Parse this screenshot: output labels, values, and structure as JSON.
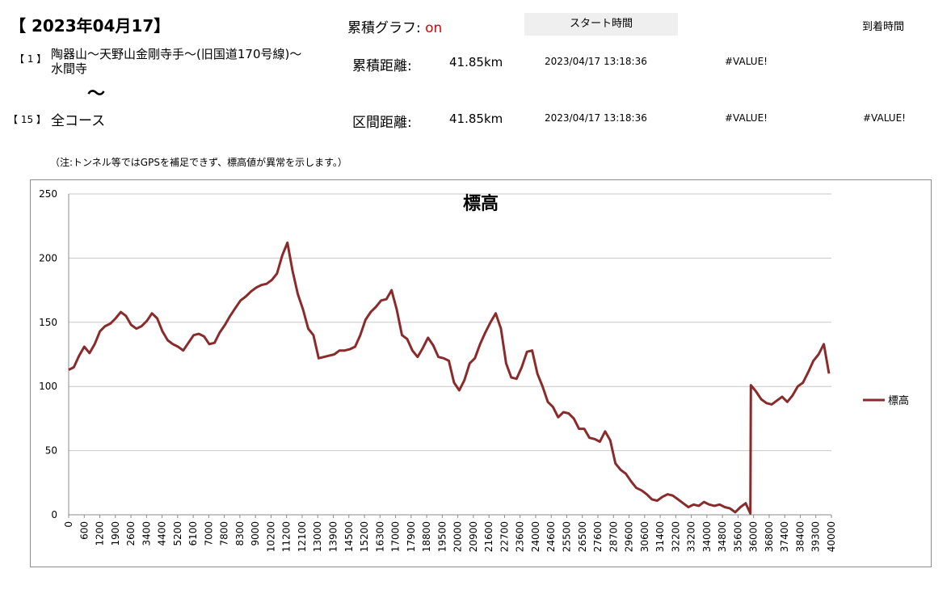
{
  "header": {
    "date": "【 2023年04月17】",
    "graph_label": "累積グラフ:",
    "graph_state": "on",
    "start_time_label": "スタート時間",
    "arrival_time_label": "到着時間"
  },
  "route": {
    "from_num": "【 1 】",
    "from_name_line1": "陶器山～天野山金剛寺手～(旧国道170号線)～",
    "from_name_line2": "水間寺",
    "tilde": "～",
    "to_num": "【 15 】",
    "to_name": "全コース"
  },
  "rows": [
    {
      "label": "累積距離:",
      "distance": "41.85km",
      "start": "2023/04/17 13:18:36",
      "arrival": "#VALUE!",
      "extra": ""
    },
    {
      "label": "区間距離:",
      "distance": "41.85km",
      "start": "2023/04/17 13:18:36",
      "arrival": "#VALUE!",
      "extra": "#VALUE!"
    }
  ],
  "note": "（注:トンネル等ではGPSを補足できず、標高値が異常を示します。）",
  "chart_data": {
    "type": "line",
    "title": "標高",
    "ylim": [
      0,
      250
    ],
    "y_ticks": [
      0,
      50,
      100,
      150,
      200,
      250
    ],
    "x_tick_labels": [
      "0",
      "600",
      "1200",
      "1900",
      "2600",
      "3400",
      "4400",
      "5200",
      "6100",
      "7000",
      "7800",
      "8300",
      "9000",
      "10200",
      "11200",
      "12100",
      "13000",
      "13900",
      "14500",
      "15200",
      "16300",
      "17000",
      "17900",
      "18800",
      "19500",
      "20000",
      "20900",
      "21600",
      "22700",
      "23600",
      "24000",
      "24600",
      "25500",
      "26500",
      "27600",
      "28700",
      "29600",
      "30600",
      "31400",
      "32200",
      "33200",
      "34000",
      "34800",
      "35600",
      "36000",
      "36800",
      "37400",
      "38400",
      "39300",
      "40000"
    ],
    "grid": "horizontal",
    "legend_position": "right",
    "series": [
      {
        "name": "標高",
        "color": "#8b2a2a",
        "points": [
          [
            0,
            113
          ],
          [
            1,
            115
          ],
          [
            2,
            124
          ],
          [
            3,
            131
          ],
          [
            4,
            126
          ],
          [
            5,
            133
          ],
          [
            6,
            143
          ],
          [
            7,
            147
          ],
          [
            8,
            149
          ],
          [
            9,
            153
          ],
          [
            10,
            158
          ],
          [
            11,
            155
          ],
          [
            12,
            148
          ],
          [
            13,
            145
          ],
          [
            14,
            147
          ],
          [
            15,
            151
          ],
          [
            16,
            157
          ],
          [
            17,
            153
          ],
          [
            18,
            143
          ],
          [
            19,
            136
          ],
          [
            20,
            133
          ],
          [
            21,
            131
          ],
          [
            22,
            128
          ],
          [
            23,
            134
          ],
          [
            24,
            140
          ],
          [
            25,
            141
          ],
          [
            26,
            139
          ],
          [
            27,
            133
          ],
          [
            28,
            134
          ],
          [
            29,
            142
          ],
          [
            30,
            148
          ],
          [
            31,
            155
          ],
          [
            32,
            161
          ],
          [
            33,
            167
          ],
          [
            34,
            170
          ],
          [
            35,
            174
          ],
          [
            36,
            177
          ],
          [
            37,
            179
          ],
          [
            38,
            180
          ],
          [
            39,
            183
          ],
          [
            40,
            188
          ],
          [
            41,
            202
          ],
          [
            42,
            212
          ],
          [
            43,
            190
          ],
          [
            44,
            172
          ],
          [
            45,
            160
          ],
          [
            46,
            145
          ],
          [
            47,
            140
          ],
          [
            48,
            122
          ],
          [
            49,
            123
          ],
          [
            50,
            124
          ],
          [
            51,
            125
          ],
          [
            52,
            128
          ],
          [
            53,
            128
          ],
          [
            54,
            129
          ],
          [
            55,
            131
          ],
          [
            56,
            140
          ],
          [
            57,
            152
          ],
          [
            58,
            158
          ],
          [
            59,
            162
          ],
          [
            60,
            167
          ],
          [
            61,
            168
          ],
          [
            62,
            175
          ],
          [
            63,
            160
          ],
          [
            64,
            140
          ],
          [
            65,
            137
          ],
          [
            66,
            128
          ],
          [
            67,
            123
          ],
          [
            68,
            130
          ],
          [
            69,
            138
          ],
          [
            70,
            132
          ],
          [
            71,
            123
          ],
          [
            72,
            122
          ],
          [
            73,
            120
          ],
          [
            74,
            103
          ],
          [
            75,
            97
          ],
          [
            76,
            105
          ],
          [
            77,
            118
          ],
          [
            78,
            122
          ],
          [
            79,
            133
          ],
          [
            80,
            142
          ],
          [
            81,
            150
          ],
          [
            82,
            157
          ],
          [
            83,
            145
          ],
          [
            84,
            118
          ],
          [
            85,
            107
          ],
          [
            86,
            106
          ],
          [
            87,
            115
          ],
          [
            88,
            127
          ],
          [
            89,
            128
          ],
          [
            90,
            110
          ],
          [
            91,
            100
          ],
          [
            92,
            88
          ],
          [
            93,
            84
          ],
          [
            94,
            76
          ],
          [
            95,
            80
          ],
          [
            96,
            79
          ],
          [
            97,
            75
          ],
          [
            98,
            67
          ],
          [
            99,
            67
          ],
          [
            100,
            60
          ],
          [
            101,
            59
          ],
          [
            102,
            57
          ],
          [
            103,
            65
          ],
          [
            104,
            58
          ],
          [
            105,
            40
          ],
          [
            106,
            35
          ],
          [
            107,
            32
          ],
          [
            108,
            26
          ],
          [
            109,
            21
          ],
          [
            110,
            19
          ],
          [
            111,
            16
          ],
          [
            112,
            12
          ],
          [
            113,
            11
          ],
          [
            114,
            14
          ],
          [
            115,
            16
          ],
          [
            116,
            15
          ],
          [
            117,
            12
          ],
          [
            118,
            9
          ],
          [
            119,
            6
          ],
          [
            120,
            8
          ],
          [
            121,
            7
          ],
          [
            122,
            10
          ],
          [
            123,
            8
          ],
          [
            124,
            7
          ],
          [
            125,
            8
          ],
          [
            126,
            6
          ],
          [
            127,
            5
          ],
          [
            128,
            2
          ],
          [
            129,
            6
          ],
          [
            130,
            9
          ],
          [
            130.9,
            1
          ],
          [
            131,
            101
          ],
          [
            132,
            96
          ],
          [
            133,
            90
          ],
          [
            134,
            87
          ],
          [
            135,
            86
          ],
          [
            136,
            89
          ],
          [
            137,
            92
          ],
          [
            138,
            88
          ],
          [
            139,
            93
          ],
          [
            140,
            100
          ],
          [
            141,
            103
          ],
          [
            142,
            111
          ],
          [
            143,
            120
          ],
          [
            144,
            125
          ],
          [
            145,
            133
          ],
          [
            146,
            110
          ]
        ]
      }
    ]
  }
}
